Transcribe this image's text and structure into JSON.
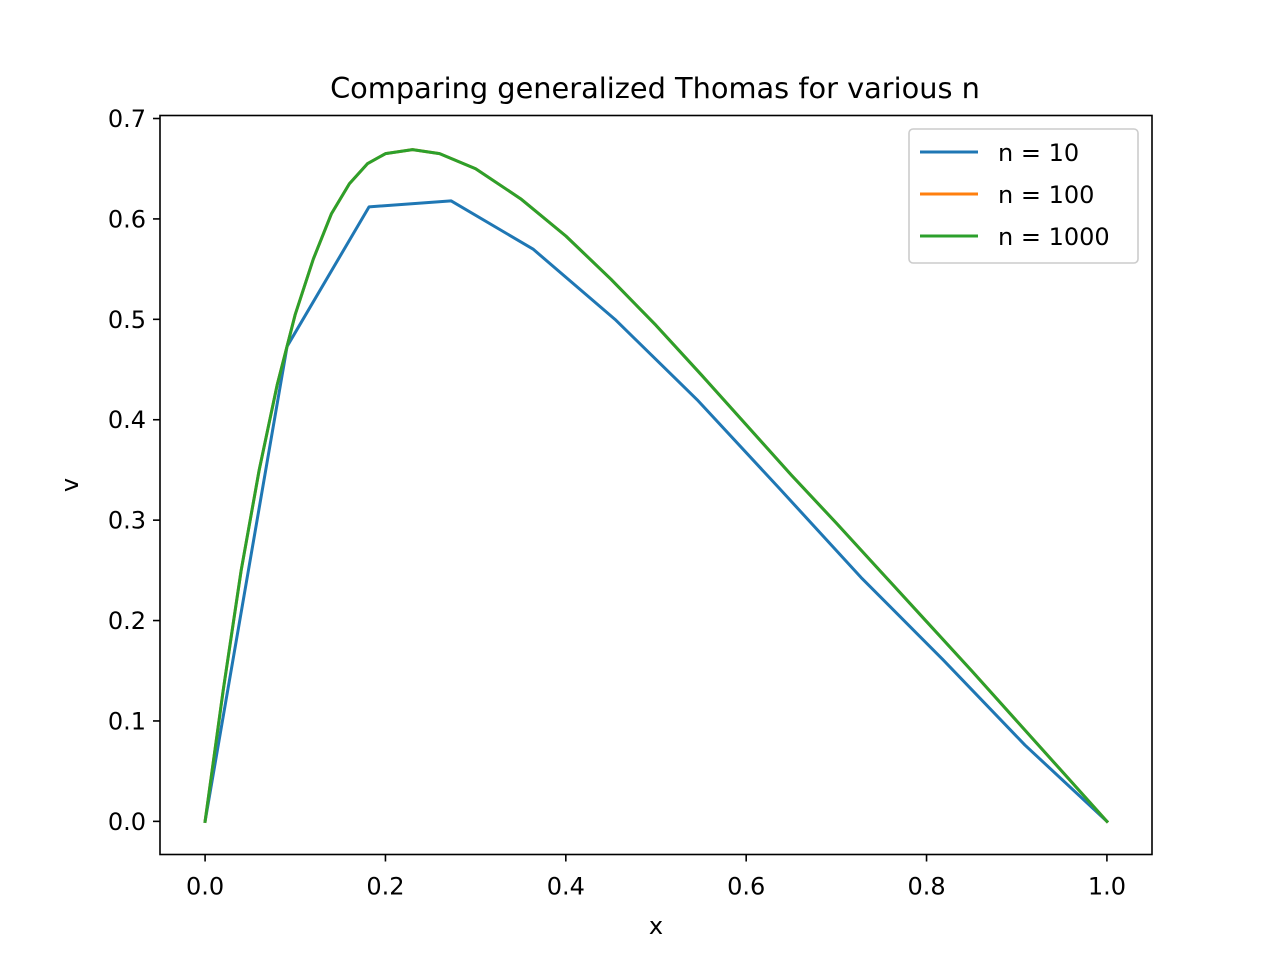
{
  "chart_data": {
    "type": "line",
    "title": "Comparing generalized Thomas for various n",
    "xlabel": "x",
    "ylabel": "v",
    "xlim": [
      -0.05,
      1.05
    ],
    "ylim": [
      -0.033,
      0.703
    ],
    "x_ticks": [
      {
        "value": 0.0,
        "label": "0.0"
      },
      {
        "value": 0.2,
        "label": "0.2"
      },
      {
        "value": 0.4,
        "label": "0.4"
      },
      {
        "value": 0.6,
        "label": "0.6"
      },
      {
        "value": 0.8,
        "label": "0.8"
      },
      {
        "value": 1.0,
        "label": "1.0"
      }
    ],
    "y_ticks": [
      {
        "value": 0.0,
        "label": "0.0"
      },
      {
        "value": 0.1,
        "label": "0.1"
      },
      {
        "value": 0.2,
        "label": "0.2"
      },
      {
        "value": 0.3,
        "label": "0.3"
      },
      {
        "value": 0.4,
        "label": "0.4"
      },
      {
        "value": 0.5,
        "label": "0.5"
      },
      {
        "value": 0.6,
        "label": "0.6"
      },
      {
        "value": 0.7,
        "label": "0.7"
      }
    ],
    "grid": false,
    "legend_position": "top-right",
    "series": [
      {
        "name": "n = 10",
        "color": "#1f77b4",
        "points": [
          [
            0.0,
            0.0
          ],
          [
            0.0909,
            0.473
          ],
          [
            0.1818,
            0.612
          ],
          [
            0.2727,
            0.618
          ],
          [
            0.3636,
            0.57
          ],
          [
            0.4545,
            0.5
          ],
          [
            0.5455,
            0.42
          ],
          [
            0.6364,
            0.332
          ],
          [
            0.7273,
            0.243
          ],
          [
            0.8182,
            0.161
          ],
          [
            0.9091,
            0.076
          ],
          [
            1.0,
            0.0
          ]
        ]
      },
      {
        "name": "n = 100",
        "color": "#ff7f0e",
        "points": [
          [
            0.0,
            0.0
          ],
          [
            0.02,
            0.13
          ],
          [
            0.04,
            0.25
          ],
          [
            0.06,
            0.35
          ],
          [
            0.08,
            0.435
          ],
          [
            0.1,
            0.505
          ],
          [
            0.12,
            0.56
          ],
          [
            0.14,
            0.605
          ],
          [
            0.16,
            0.635
          ],
          [
            0.18,
            0.655
          ],
          [
            0.2,
            0.665
          ],
          [
            0.23,
            0.669
          ],
          [
            0.26,
            0.665
          ],
          [
            0.3,
            0.65
          ],
          [
            0.35,
            0.62
          ],
          [
            0.4,
            0.583
          ],
          [
            0.45,
            0.54
          ],
          [
            0.5,
            0.494
          ],
          [
            0.55,
            0.445
          ],
          [
            0.6,
            0.395
          ],
          [
            0.65,
            0.345
          ],
          [
            0.7,
            0.297
          ],
          [
            0.75,
            0.248
          ],
          [
            0.8,
            0.199
          ],
          [
            0.85,
            0.15
          ],
          [
            0.9,
            0.1
          ],
          [
            0.95,
            0.05
          ],
          [
            1.0,
            0.0
          ]
        ]
      },
      {
        "name": "n = 1000",
        "color": "#2ca02c",
        "points": [
          [
            0.0,
            0.0
          ],
          [
            0.02,
            0.13
          ],
          [
            0.04,
            0.25
          ],
          [
            0.06,
            0.35
          ],
          [
            0.08,
            0.435
          ],
          [
            0.1,
            0.505
          ],
          [
            0.12,
            0.56
          ],
          [
            0.14,
            0.605
          ],
          [
            0.16,
            0.635
          ],
          [
            0.18,
            0.655
          ],
          [
            0.2,
            0.665
          ],
          [
            0.23,
            0.669
          ],
          [
            0.26,
            0.665
          ],
          [
            0.3,
            0.65
          ],
          [
            0.35,
            0.62
          ],
          [
            0.4,
            0.583
          ],
          [
            0.45,
            0.54
          ],
          [
            0.5,
            0.494
          ],
          [
            0.55,
            0.445
          ],
          [
            0.6,
            0.395
          ],
          [
            0.65,
            0.345
          ],
          [
            0.7,
            0.297
          ],
          [
            0.75,
            0.248
          ],
          [
            0.8,
            0.199
          ],
          [
            0.85,
            0.15
          ],
          [
            0.9,
            0.1
          ],
          [
            0.95,
            0.05
          ],
          [
            1.0,
            0.0
          ]
        ]
      }
    ]
  }
}
